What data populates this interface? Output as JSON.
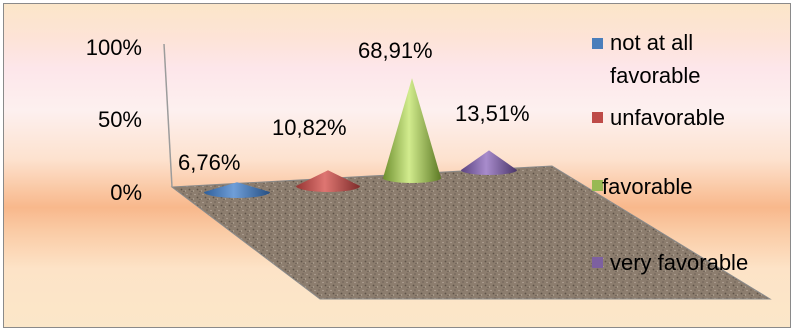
{
  "chart_data": {
    "type": "cone-3d",
    "categories": [
      "not at all favorable",
      "unfavorable",
      "favorable",
      "very favorable"
    ],
    "values": [
      6.76,
      10.82,
      68.91,
      13.51
    ],
    "value_labels": [
      "6,76%",
      "10,82%",
      "68,91%",
      "13,51%"
    ],
    "axis": {
      "ticks": [
        "100%",
        "50%",
        "0%"
      ],
      "ylim": [
        0,
        100
      ]
    },
    "legend": {
      "position": "right",
      "entries": [
        {
          "lines": [
            "not at all",
            "favorable"
          ],
          "color": "#4a7ebb"
        },
        {
          "lines": [
            "unfavorable"
          ],
          "color": "#be4b48"
        },
        {
          "lines": [
            "favorable"
          ],
          "color": "#98b954"
        },
        {
          "lines": [
            "very favorable"
          ],
          "color": "#7d60a0"
        }
      ]
    },
    "colors": [
      "#4a7ebb",
      "#be4b48",
      "#98b954",
      "#7d60a0"
    ],
    "grid": false
  }
}
